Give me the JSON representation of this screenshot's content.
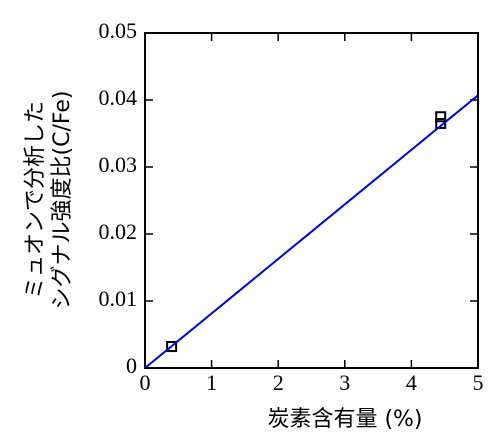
{
  "chart_data": {
    "type": "scatter",
    "x_label": "炭素含有量 (%)",
    "y_label": [
      "ミュオンで分析した",
      "シグナル強度比(C/Fe)"
    ],
    "xlim": [
      0,
      5
    ],
    "ylim": [
      0,
      0.05
    ],
    "xticks": [
      0,
      1,
      2,
      3,
      4,
      5
    ],
    "yticks": [
      0,
      0.01,
      0.02,
      0.03,
      0.04,
      0.05
    ],
    "series": [
      {
        "type": "scatter",
        "color": "#000000",
        "x": [
          0.4,
          4.44,
          4.44
        ],
        "values": [
          0.0032,
          0.0375,
          0.0365
        ]
      },
      {
        "type": "line",
        "color": "#0000cc",
        "x": [
          0,
          5
        ],
        "values": [
          0,
          0.0407
        ]
      }
    ]
  }
}
